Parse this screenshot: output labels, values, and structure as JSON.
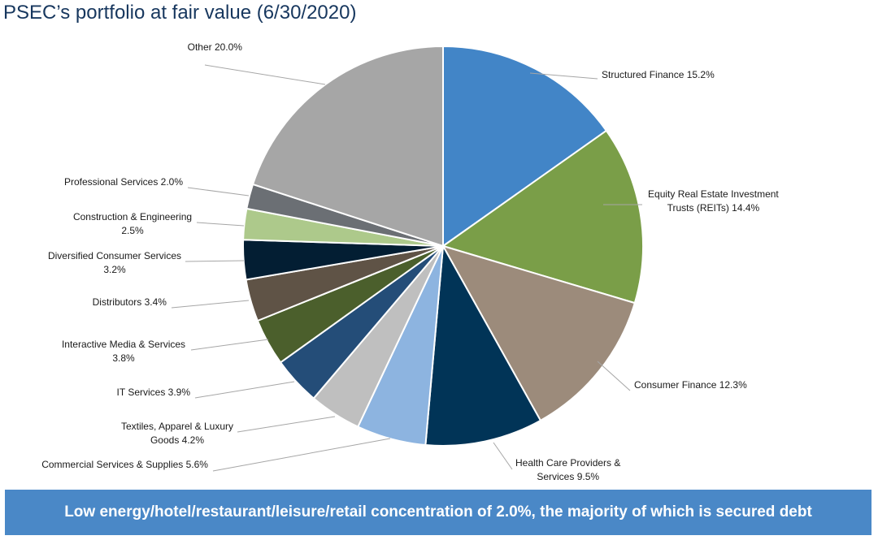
{
  "title": "PSEC’s portfolio at fair value (6/30/2020)",
  "banner": "Low energy/hotel/restaurant/leisure/retail concentration of 2.0%, the majority of which is secured debt",
  "chart_data": {
    "type": "pie",
    "title": "PSEC’s portfolio at fair value (6/30/2020)",
    "unit": "%",
    "slices": [
      {
        "label": "Structured Finance",
        "value": 15.2,
        "color": "#4285c7",
        "label_lines": [
          "Structured Finance 15.2%"
        ]
      },
      {
        "label": "Equity Real Estate Investment Trusts (REITs)",
        "value": 14.4,
        "color": "#7a9e48",
        "label_lines": [
          "Equity Real Estate Investment",
          "Trusts (REITs) 14.4%"
        ]
      },
      {
        "label": "Consumer Finance",
        "value": 12.3,
        "color": "#9c8b7b",
        "label_lines": [
          "Consumer Finance 12.3%"
        ]
      },
      {
        "label": "Health Care Providers & Services",
        "value": 9.5,
        "color": "#013457",
        "label_lines": [
          "Health Care Providers &",
          "Services 9.5%"
        ]
      },
      {
        "label": "Commercial Services & Supplies",
        "value": 5.6,
        "color": "#8db4e0",
        "label_lines": [
          "Commercial Services & Supplies 5.6%"
        ]
      },
      {
        "label": "Textiles, Apparel & Luxury Goods",
        "value": 4.2,
        "color": "#bfbfbf",
        "label_lines": [
          "Textiles, Apparel & Luxury",
          "Goods 4.2%"
        ]
      },
      {
        "label": "IT Services",
        "value": 3.9,
        "color": "#244d78",
        "label_lines": [
          "IT Services 3.9%"
        ]
      },
      {
        "label": "Interactive Media & Services",
        "value": 3.8,
        "color": "#4b5f2c",
        "label_lines": [
          "Interactive Media & Services",
          "3.8%"
        ]
      },
      {
        "label": "Distributors",
        "value": 3.4,
        "color": "#5f5346",
        "label_lines": [
          "Distributors 3.4%"
        ]
      },
      {
        "label": "Diversified Consumer Services",
        "value": 3.2,
        "color": "#031e33",
        "label_lines": [
          "Diversified Consumer Services",
          "3.2%"
        ]
      },
      {
        "label": "Construction & Engineering",
        "value": 2.5,
        "color": "#adc98b",
        "label_lines": [
          "Construction & Engineering",
          "2.5%"
        ]
      },
      {
        "label": "Professional Services",
        "value": 2.0,
        "color": "#6b6f74",
        "label_lines": [
          "Professional Services 2.0%"
        ]
      },
      {
        "label": "Other",
        "value": 20.0,
        "color": "#a6a6a6",
        "label_lines": [
          "Other 20.0%"
        ]
      }
    ],
    "legend": "none"
  }
}
